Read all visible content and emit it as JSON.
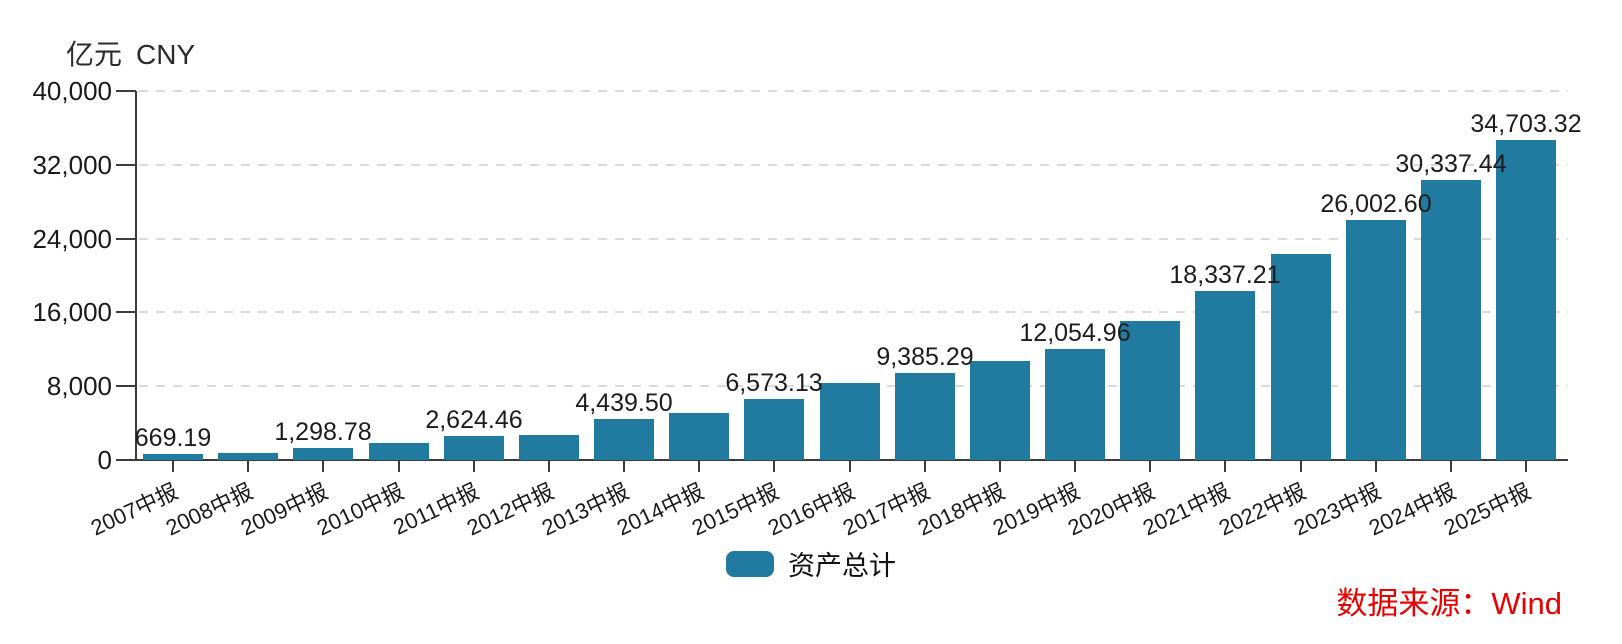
{
  "y_axis_title": {
    "unit": "亿元",
    "currency": "CNY"
  },
  "legend": {
    "label": "资产总计"
  },
  "source": {
    "label": "数据来源：Wind",
    "color": "#e60000"
  },
  "colors": {
    "bar": "#217aa0",
    "axis": "#3c3c3c",
    "grid": "#dadada"
  },
  "chart_data": {
    "type": "bar",
    "title": "",
    "xlabel": "",
    "ylabel": "亿元 CNY",
    "ylim": [
      0,
      40000
    ],
    "grid": "dashed-horizontal",
    "legend_position": "bottom-center",
    "yticks": [
      {
        "value": 0,
        "label": "0"
      },
      {
        "value": 8000,
        "label": "8,000"
      },
      {
        "value": 16000,
        "label": "16,000"
      },
      {
        "value": 24000,
        "label": "24,000"
      },
      {
        "value": 32000,
        "label": "32,000"
      },
      {
        "value": 40000,
        "label": "40,000"
      }
    ],
    "categories": [
      "2007中报",
      "2008中报",
      "2009中报",
      "2010中报",
      "2011中报",
      "2012中报",
      "2013中报",
      "2014中报",
      "2015中报",
      "2016中报",
      "2017中报",
      "2018中报",
      "2019中报",
      "2020中报",
      "2021中报",
      "2022中报",
      "2023中报",
      "2024中报",
      "2025中报"
    ],
    "series": [
      {
        "name": "资产总计",
        "color": "#217aa0",
        "values": [
          669.19,
          800,
          1298.78,
          1840,
          2624.46,
          2730,
          4439.5,
          5080,
          6573.13,
          8320,
          9385.29,
          10700,
          12054.96,
          15020,
          18337.21,
          22370,
          26002.6,
          30337.44,
          34703.32
        ],
        "point_labels": [
          "669.19",
          "",
          "1,298.78",
          "",
          "2,624.46",
          "",
          "4,439.50",
          "",
          "6,573.13",
          "",
          "9,385.29",
          "",
          "12,054.96",
          "",
          "18,337.21",
          "",
          "26,002.60",
          "30,337.44",
          "34,703.32"
        ]
      }
    ]
  }
}
